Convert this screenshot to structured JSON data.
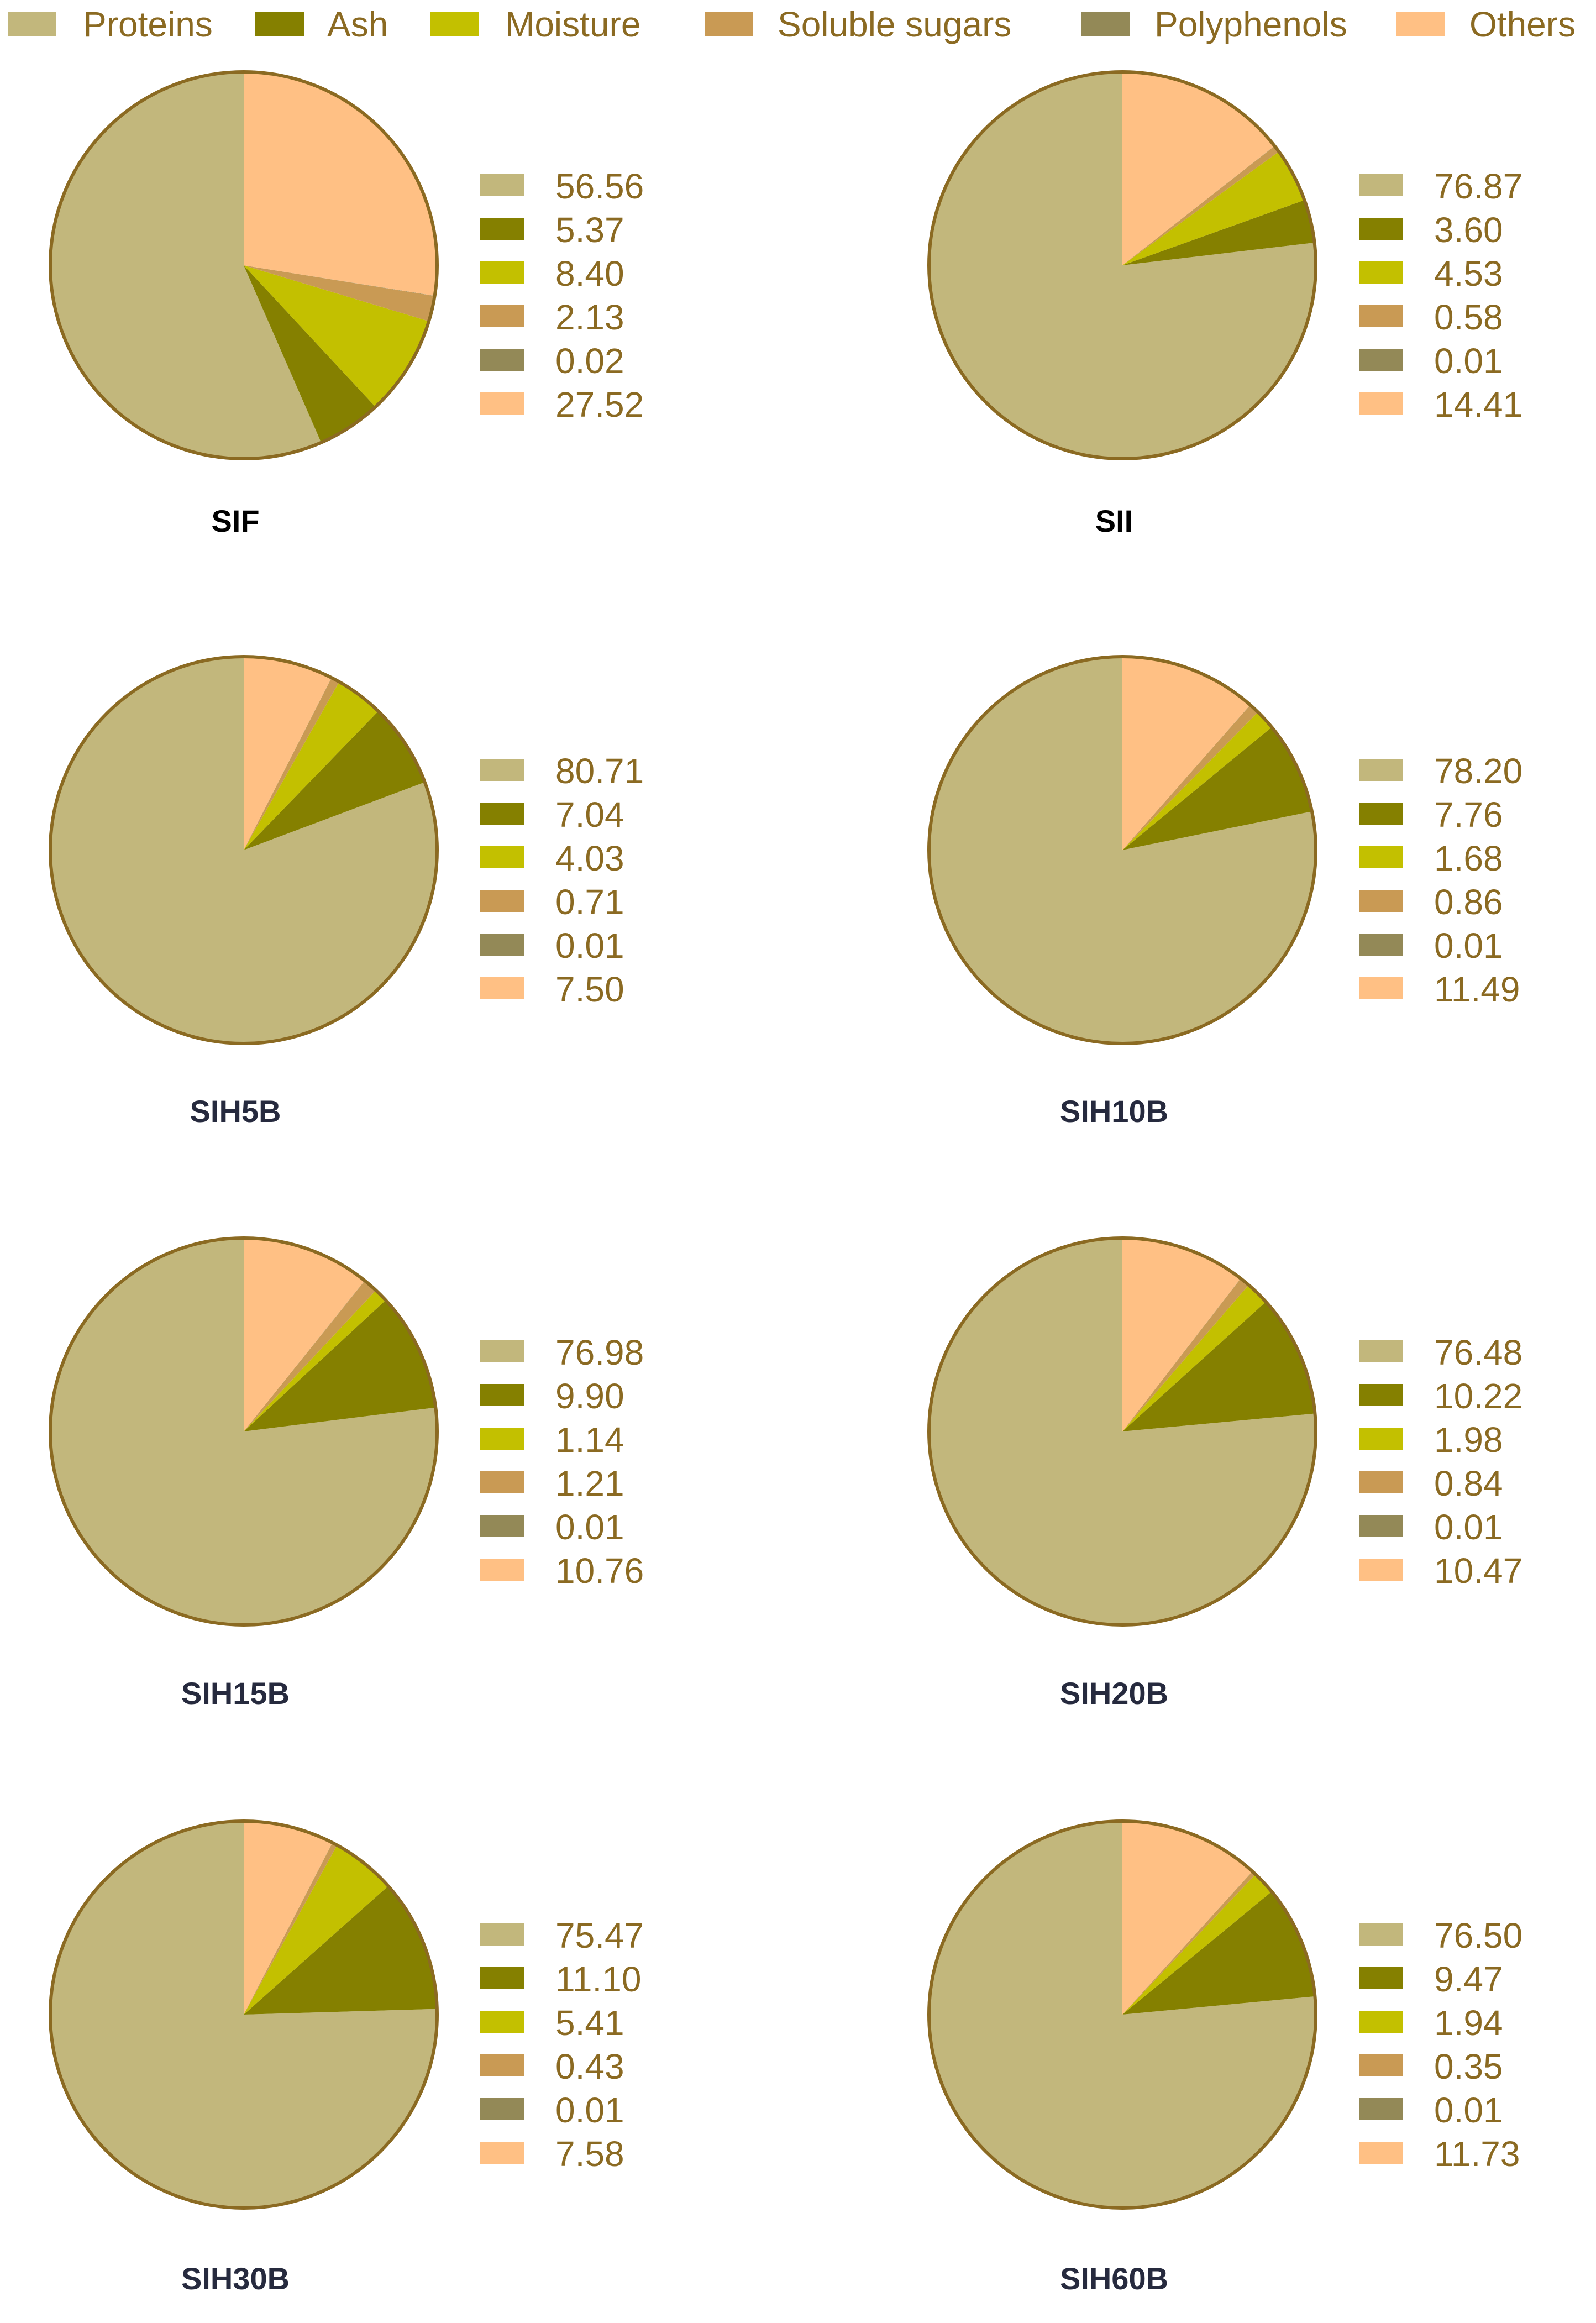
{
  "legend": {
    "entries": [
      "Proteins",
      "Ash",
      "Moisture",
      "Soluble sugars",
      "Polyphenols",
      "Others"
    ],
    "placement": "top"
  },
  "colors": {
    "series": [
      "#c2b77c",
      "#858000",
      "#c3c000",
      "#c99a54",
      "#938957",
      "#ffc084"
    ],
    "outline": "#8b6a22",
    "text": "#8b6a22",
    "title_dark": "#000000",
    "title_navy": "#262a3e"
  },
  "chart_data": [
    {
      "type": "pie",
      "title": "SIF",
      "categories": [
        "Proteins",
        "Ash",
        "Moisture",
        "Soluble sugars",
        "Polyphenols",
        "Others"
      ],
      "values": [
        56.56,
        5.37,
        8.4,
        2.13,
        0.02,
        27.52
      ],
      "labels": [
        "56.56",
        "5.37",
        "8.40",
        "2.13",
        "0.02",
        "27.52"
      ]
    },
    {
      "type": "pie",
      "title": "SII",
      "categories": [
        "Proteins",
        "Ash",
        "Moisture",
        "Soluble sugars",
        "Polyphenols",
        "Others"
      ],
      "values": [
        76.87,
        3.6,
        4.53,
        0.58,
        0.01,
        14.41
      ],
      "labels": [
        "76.87",
        "3.60",
        "4.53",
        "0.58",
        "0.01",
        "14.41"
      ]
    },
    {
      "type": "pie",
      "title": "SIH5B",
      "categories": [
        "Proteins",
        "Ash",
        "Moisture",
        "Soluble sugars",
        "Polyphenols",
        "Others"
      ],
      "values": [
        80.71,
        7.04,
        4.03,
        0.71,
        0.01,
        7.5
      ],
      "labels": [
        "80.71",
        "7.04",
        "4.03",
        "0.71",
        "0.01",
        "7.50"
      ]
    },
    {
      "type": "pie",
      "title": "SIH10B",
      "categories": [
        "Proteins",
        "Ash",
        "Moisture",
        "Soluble sugars",
        "Polyphenols",
        "Others"
      ],
      "values": [
        78.2,
        7.76,
        1.68,
        0.86,
        0.01,
        11.49
      ],
      "labels": [
        "78.20",
        "7.76",
        "1.68",
        "0.86",
        "0.01",
        "11.49"
      ]
    },
    {
      "type": "pie",
      "title": "SIH15B",
      "categories": [
        "Proteins",
        "Ash",
        "Moisture",
        "Soluble sugars",
        "Polyphenols",
        "Others"
      ],
      "values": [
        76.98,
        9.9,
        1.14,
        1.21,
        0.01,
        10.76
      ],
      "labels": [
        "76.98",
        "9.90",
        "1.14",
        "1.21",
        "0.01",
        "10.76"
      ]
    },
    {
      "type": "pie",
      "title": "SIH20B",
      "categories": [
        "Proteins",
        "Ash",
        "Moisture",
        "Soluble sugars",
        "Polyphenols",
        "Others"
      ],
      "values": [
        76.48,
        10.22,
        1.98,
        0.84,
        0.01,
        10.47
      ],
      "labels": [
        "76.48",
        "10.22",
        "1.98",
        "0.84",
        "0.01",
        "10.47"
      ]
    },
    {
      "type": "pie",
      "title": "SIH30B",
      "categories": [
        "Proteins",
        "Ash",
        "Moisture",
        "Soluble sugars",
        "Polyphenols",
        "Others"
      ],
      "values": [
        75.47,
        11.1,
        5.41,
        0.43,
        0.01,
        7.58
      ],
      "labels": [
        "75.47",
        "11.10",
        "5.41",
        "0.43",
        "0.01",
        "7.58"
      ]
    },
    {
      "type": "pie",
      "title": "SIH60B",
      "categories": [
        "Proteins",
        "Ash",
        "Moisture",
        "Soluble sugars",
        "Polyphenols",
        "Others"
      ],
      "values": [
        76.5,
        9.47,
        1.94,
        0.35,
        0.01,
        11.73
      ],
      "labels": [
        "76.50",
        "9.47",
        "1.94",
        "0.35",
        "0.01",
        "11.73"
      ]
    }
  ]
}
